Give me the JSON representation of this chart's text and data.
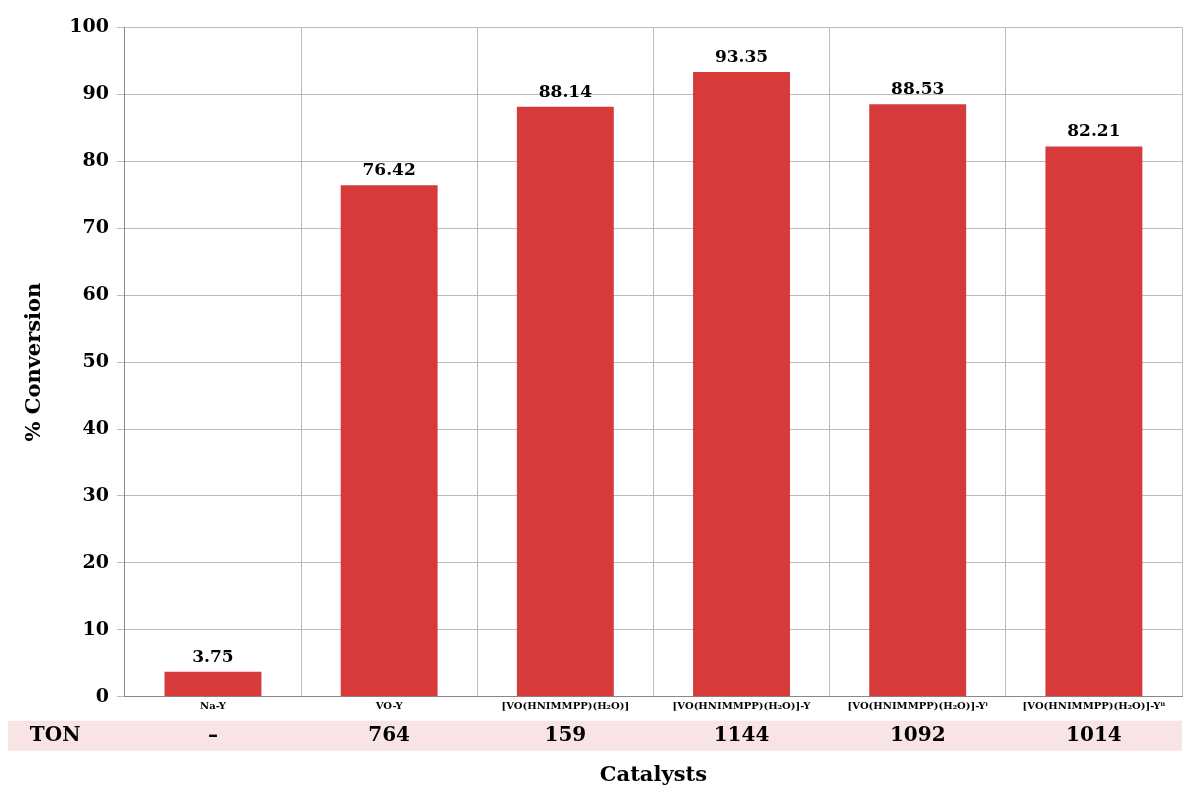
{
  "chart_data": {
    "type": "bar",
    "xlabel": "Catalysts",
    "ylabel": "% Conversion",
    "categories": [
      "Na-Y",
      "VO-Y",
      "[VO(HNIMMPP)(H₂O)]",
      "[VO(HNIMMPP)(H₂O)]-Y",
      "[VO(HNIMMPP)(H₂O)]-Yⁱ",
      "[VO(HNIMMPP)(H₂O)]-Yⁱⁱ"
    ],
    "values": [
      3.75,
      76.42,
      88.14,
      93.35,
      88.53,
      82.21
    ],
    "color": "#d63a3a",
    "ylim": [
      0,
      100
    ],
    "yticks": [
      0,
      10,
      20,
      30,
      40,
      50,
      60,
      70,
      80,
      90,
      100
    ],
    "grid": true,
    "data_labels": true,
    "annotations": [
      "TON",
      "–",
      "764",
      "159",
      "1144",
      "1092",
      "1014"
    ]
  }
}
